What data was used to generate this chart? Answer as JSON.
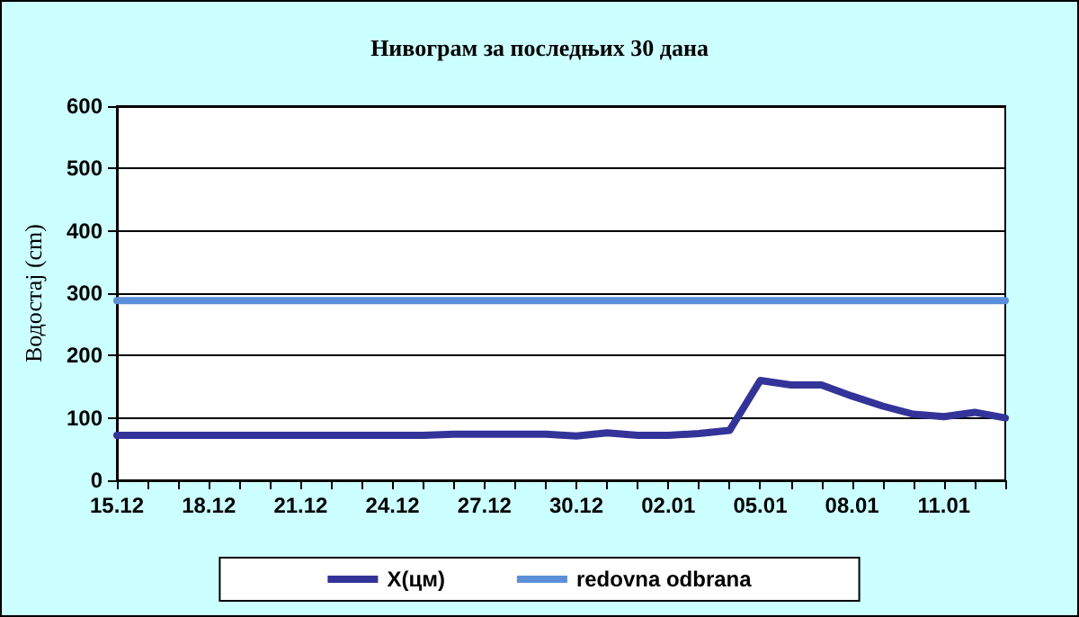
{
  "chart_data": {
    "type": "line",
    "title": "Нивограм за последњих 30 дана",
    "ylabel": "Водостај (cm)",
    "categories": [
      "15.12",
      null,
      null,
      "18.12",
      null,
      null,
      "21.12",
      null,
      null,
      "24.12",
      null,
      null,
      "27.12",
      null,
      null,
      "30.12",
      null,
      null,
      "02.01",
      null,
      null,
      "05.01",
      null,
      null,
      "08.01",
      null,
      null,
      "11.01",
      null,
      null
    ],
    "series": [
      {
        "name": "X(цм)",
        "color": "#333399",
        "values": [
          72,
          72,
          72,
          72,
          72,
          72,
          72,
          72,
          72,
          72,
          72,
          74,
          74,
          74,
          74,
          71,
          76,
          72,
          72,
          75,
          80,
          160,
          153,
          153,
          135,
          119,
          106,
          102,
          109,
          100
        ]
      },
      {
        "name": "redovna odbrana",
        "color": "#5b8fd9",
        "values": [
          288,
          288,
          288,
          288,
          288,
          288,
          288,
          288,
          288,
          288,
          288,
          288,
          288,
          288,
          288,
          288,
          288,
          288,
          288,
          288,
          288,
          288,
          288,
          288,
          288,
          288,
          288,
          288,
          288,
          288
        ]
      }
    ],
    "ylim": [
      0,
      600
    ],
    "yticks": [
      0,
      100,
      200,
      300,
      400,
      500,
      600
    ],
    "grid": "y",
    "legend": "bottom",
    "marker": "none",
    "line_style": "solid"
  }
}
